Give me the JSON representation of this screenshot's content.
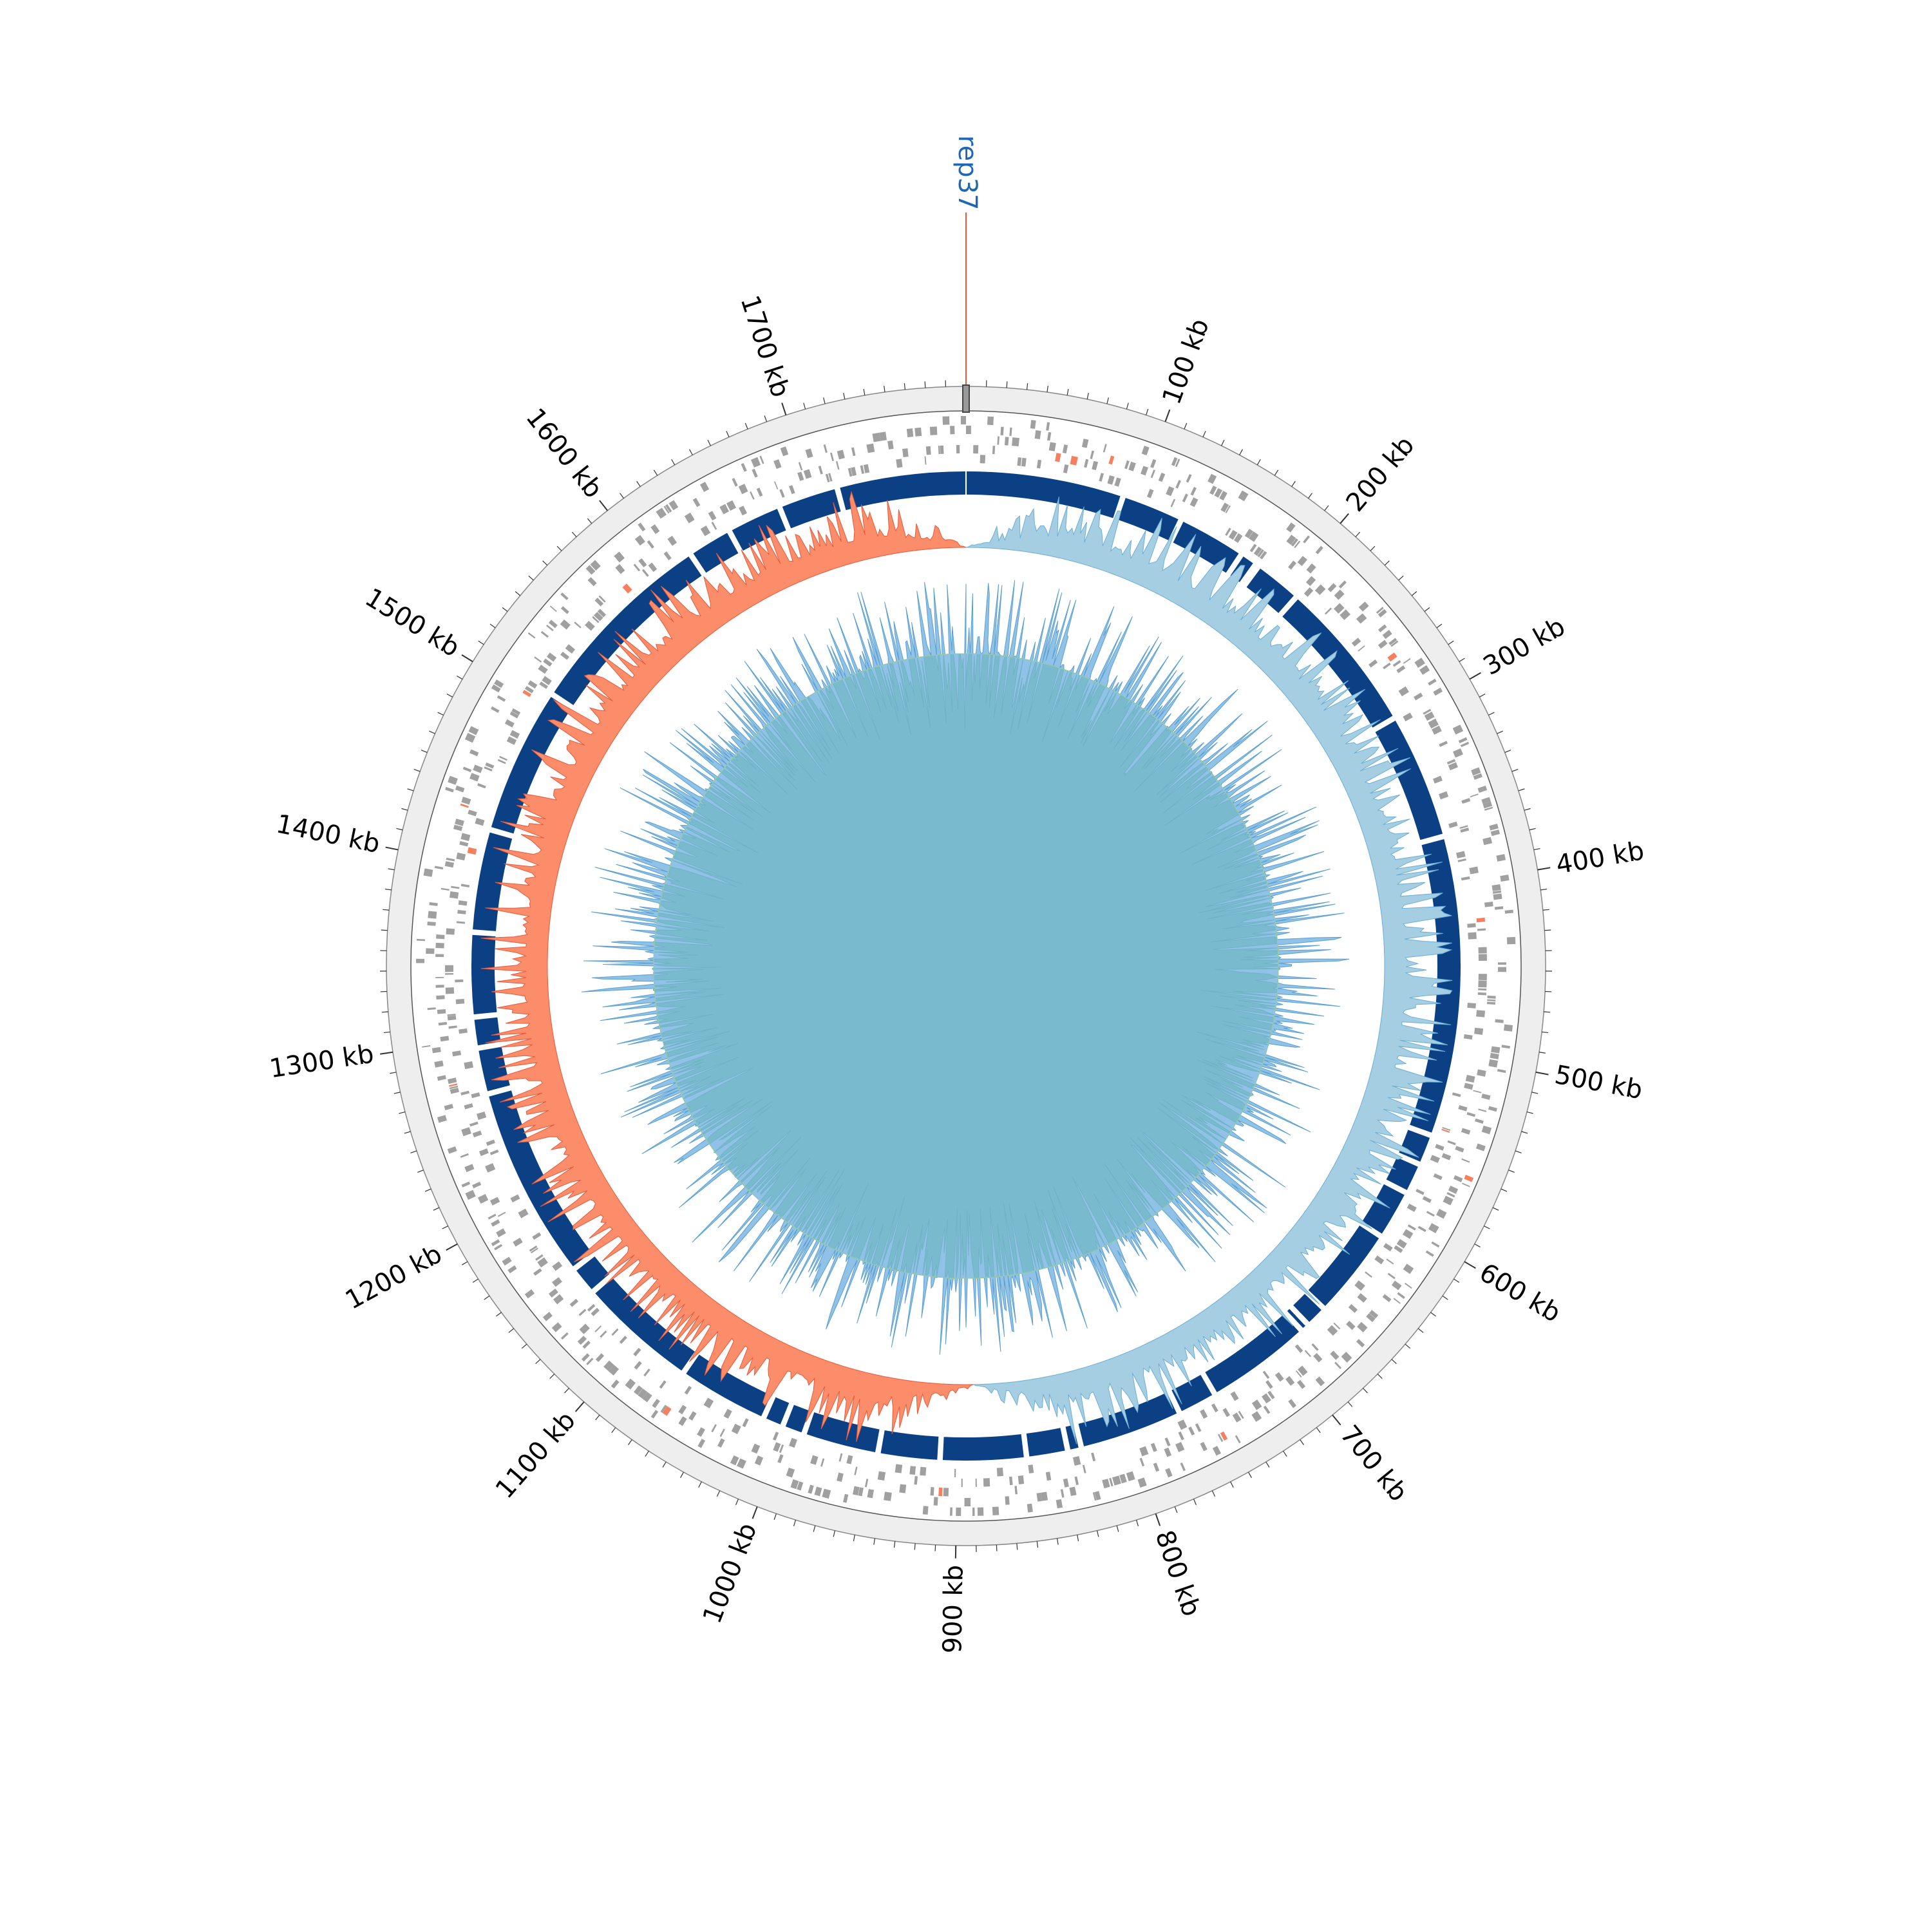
{
  "chart_data": {
    "type": "circular-genome",
    "genome_length_kb": 1790,
    "axis_unit": "kb",
    "tick_labels": [
      "100 kb",
      "200 kb",
      "300 kb",
      "400 kb",
      "500 kb",
      "600 kb",
      "700 kb",
      "800 kb",
      "900 kb",
      "1000 kb",
      "1100 kb",
      "1200 kb",
      "1300 kb",
      "1400 kb",
      "1500 kb",
      "1600 kb",
      "1700 kb"
    ],
    "major_tick_step_kb": 100,
    "minor_tick_step_kb": 10,
    "marker": {
      "label": "rep37",
      "position_kb": 0
    },
    "tracks": [
      {
        "name": "genes",
        "color": "#a0a0a0",
        "highlight_color": "#f4805f"
      },
      {
        "name": "contigs",
        "color": "#0b4184",
        "gaps_kb": [
          92,
          128,
          168,
          178,
          180,
          208,
          298,
          372,
          547,
          565,
          583,
          612,
          665,
          678,
          683,
          745,
          768,
          828,
          836,
          860,
          910,
          946,
          990,
          1003,
          1015,
          1068,
          1138,
          1155,
          1268,
          1295,
          1313,
          1362,
          1422,
          1508,
          1622,
          1648,
          1680,
          1715
        ]
      },
      {
        "name": "gc-skew",
        "positive_color": "#a6cee3",
        "negative_color": "#fb8d6a",
        "outline_positive": "#6aaed6",
        "outline_negative": "#e8583a",
        "switch_kb": [
          0,
          890
        ]
      },
      {
        "name": "gc-content",
        "above_color": "#73b3e0",
        "below_color": "#7ccc77"
      }
    ],
    "colors": {
      "ring_background": "#eeeeee",
      "ring_border": "#888888"
    }
  }
}
